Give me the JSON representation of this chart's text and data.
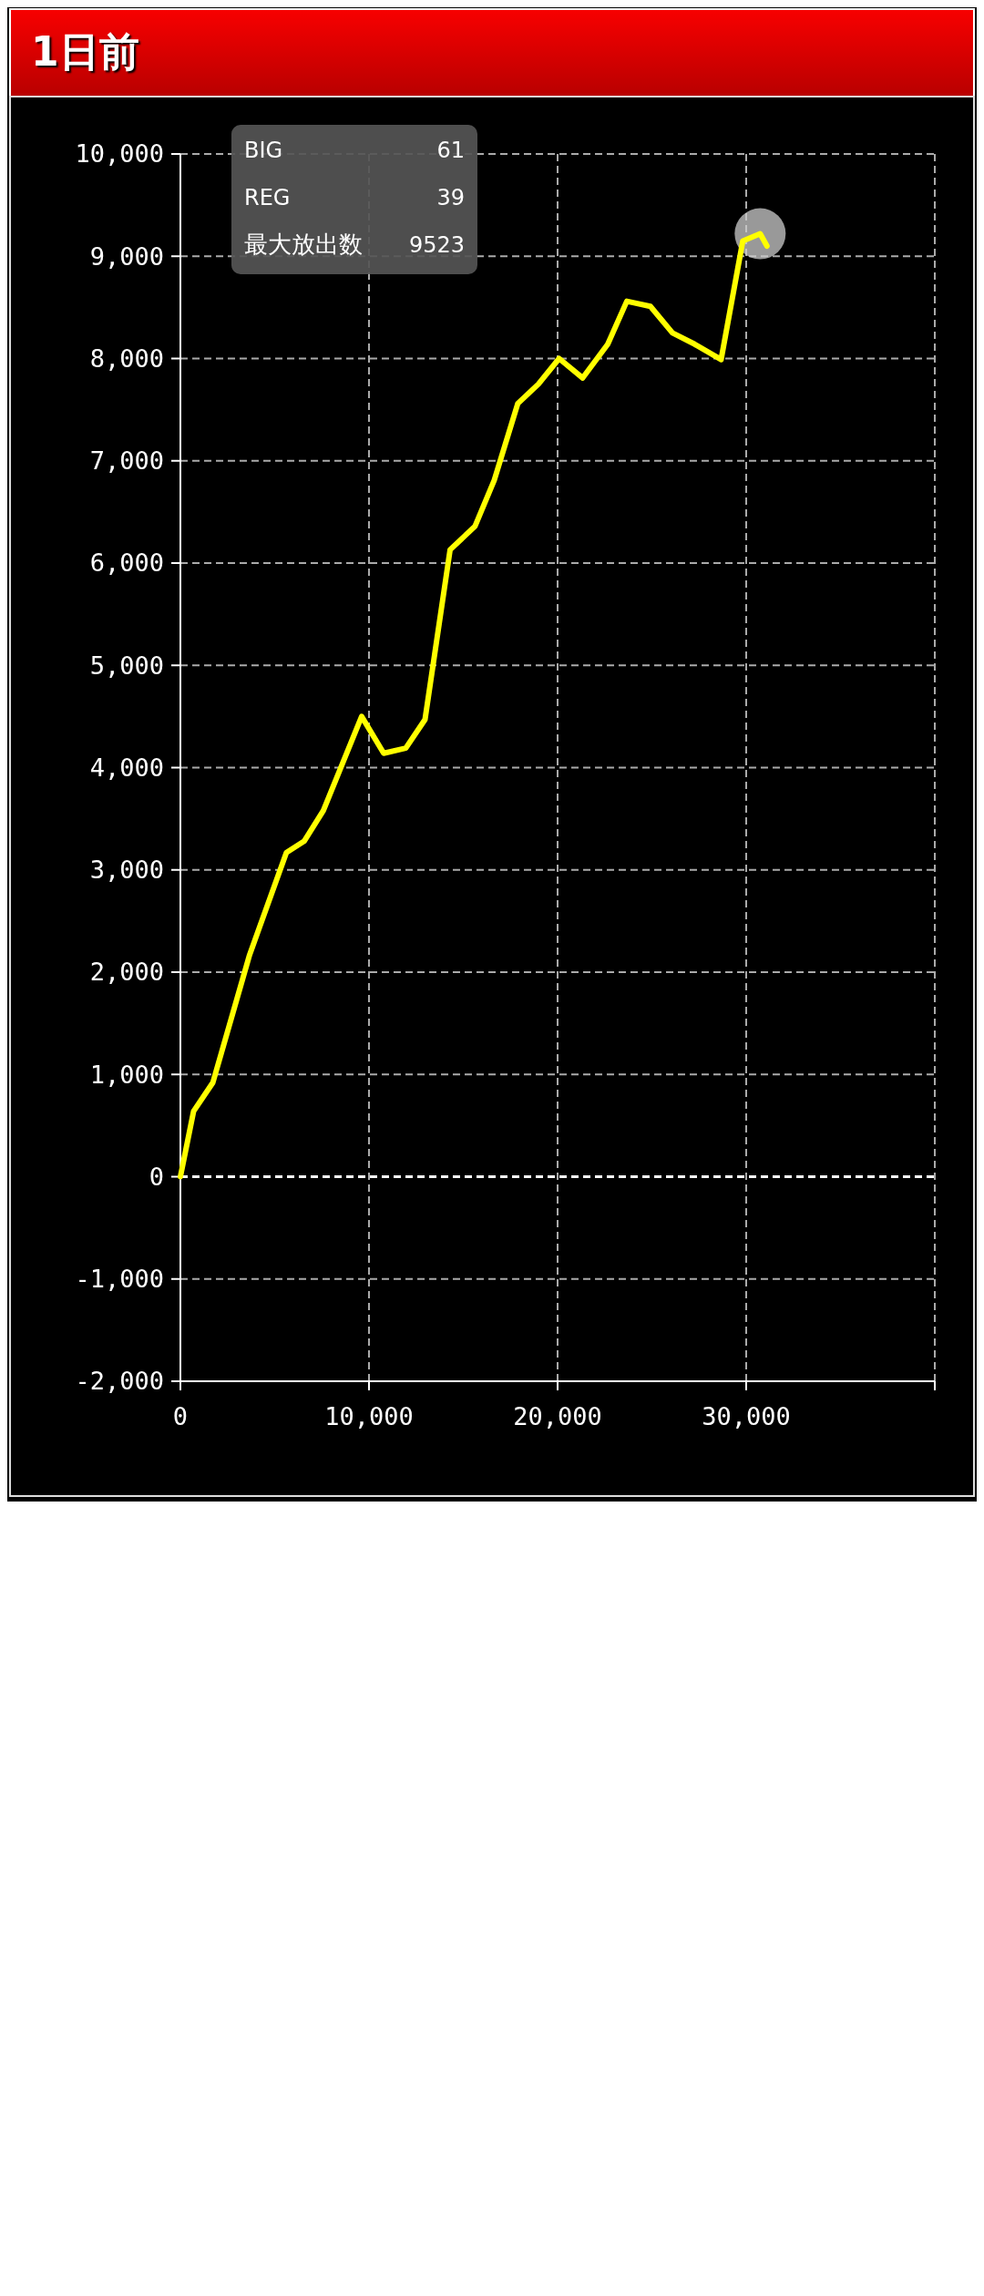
{
  "chart_data": {
    "type": "line",
    "title": "1日前",
    "annotations": [
      "BIG",
      "61",
      "REG",
      "39",
      "最大放出数",
      "9523"
    ],
    "series": [
      {
        "color": "#ffff00",
        "x": [
          0,
          700,
          1720,
          3670,
          5620,
          6560,
          7580,
          9610,
          10780,
          11950,
          12970,
          14300,
          15620,
          16640,
          17890,
          18980,
          20080,
          21330,
          22660,
          23670,
          24920,
          26090,
          27270,
          28670,
          29820,
          30740,
          31100
        ],
        "values": [
          0,
          640,
          920,
          2170,
          3170,
          3280,
          3580,
          4500,
          4140,
          4190,
          4470,
          6130,
          6360,
          6810,
          7560,
          7750,
          8000,
          7810,
          8140,
          8560,
          8510,
          8250,
          8140,
          7990,
          9150,
          9220,
          9100
        ]
      }
    ],
    "xlim": [
      0,
      40000
    ],
    "xticks": [
      0,
      {
        "value": 10000,
        "label": "10,000"
      },
      {
        "value": 20000,
        "label": "20,000"
      },
      {
        "value": 30000,
        "label": "30,000"
      },
      {
        "value": 40000,
        "label": null
      }
    ],
    "ylim": [
      -2000,
      10000
    ],
    "yticks": [
      {
        "value": -2000,
        "label": "-2,000"
      },
      {
        "value": -1000,
        "label": "-1,000"
      },
      0,
      {
        "value": 1000,
        "label": "1,000"
      },
      {
        "value": 2000,
        "label": "2,000"
      },
      {
        "value": 3000,
        "label": "3,000"
      },
      {
        "value": 4000,
        "label": "4,000"
      },
      {
        "value": 5000,
        "label": "5,000"
      },
      {
        "value": 6000,
        "label": "6,000"
      },
      {
        "value": 7000,
        "label": "7,000"
      },
      {
        "value": 8000,
        "label": "8,000"
      },
      {
        "value": 9000,
        "label": "9,000"
      },
      {
        "value": 10000,
        "label": "10,000"
      }
    ],
    "ref_lines": [
      {
        "axis": "y",
        "value": 0,
        "label": null,
        "color": "#ffffff",
        "line_style": "dashed"
      }
    ],
    "grid": true,
    "line_style": "solid",
    "marker": "none"
  }
}
